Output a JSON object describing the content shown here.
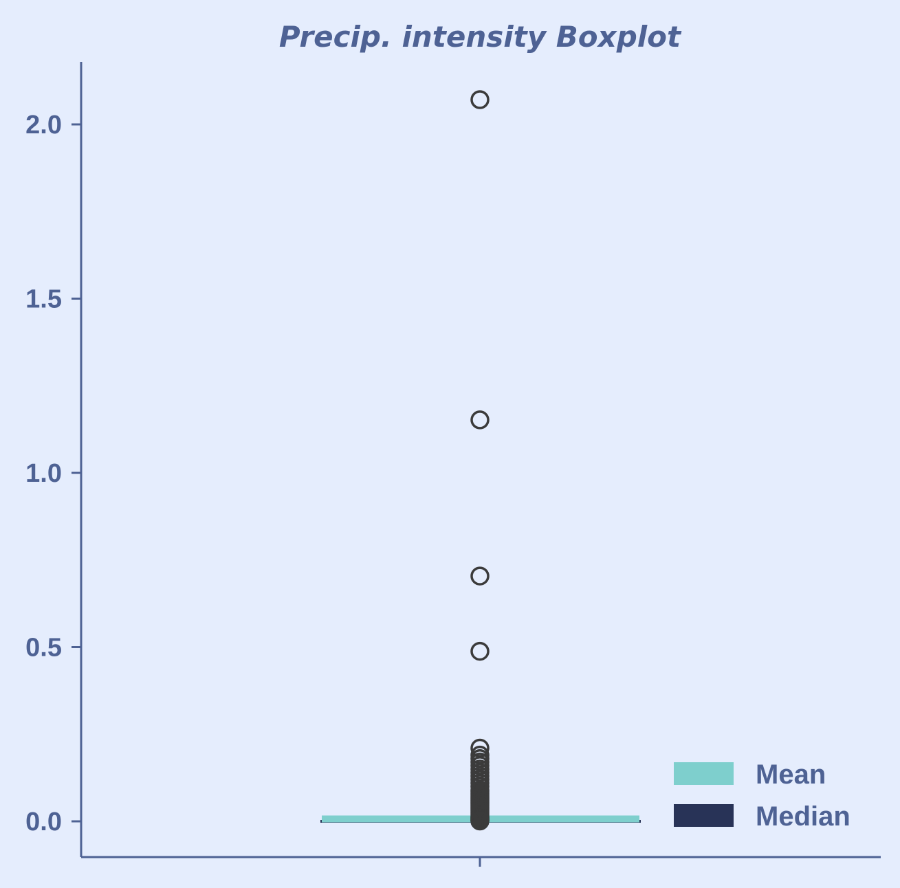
{
  "chart_data": {
    "type": "box",
    "title": "Precip. intensity Boxplot",
    "xlabel": "",
    "ylabel": "",
    "ylim": [
      -0.1,
      2.18
    ],
    "yticks": [
      {
        "value": 0.0,
        "label": "0.0"
      },
      {
        "value": 0.5,
        "label": "0.5"
      },
      {
        "value": 1.0,
        "label": "1.0"
      },
      {
        "value": 1.5,
        "label": "1.5"
      },
      {
        "value": 2.0,
        "label": "2.0"
      }
    ],
    "box": {
      "min": 0.0,
      "q1": 0.0,
      "median": 0.0,
      "q3": 0.0,
      "max": 0.0,
      "mean": 0.0069
    },
    "outliers": [
      2.071,
      1.152,
      0.704,
      0.488,
      0.21,
      0.19,
      0.18,
      0.17,
      0.16,
      0.15,
      0.14,
      0.13,
      0.12,
      0.11,
      0.1,
      0.09,
      0.085,
      0.08,
      0.075,
      0.07,
      0.065,
      0.06,
      0.055,
      0.05,
      0.045,
      0.04,
      0.035,
      0.03,
      0.025,
      0.02,
      0.015,
      0.012,
      0.01,
      0.008,
      0.006,
      0.004,
      0.002,
      0.001
    ],
    "legend": {
      "position": "lower-right",
      "entries": [
        {
          "label": "Mean",
          "color": "#7ecfcd"
        },
        {
          "label": "Median",
          "color": "#283357"
        }
      ]
    },
    "grid": false
  },
  "colors": {
    "background": "#e5edfd",
    "axis": "#4e6294",
    "mean_line": "#7ecfcd",
    "median_line": "#283357",
    "outlier": "#3b3b3b"
  }
}
